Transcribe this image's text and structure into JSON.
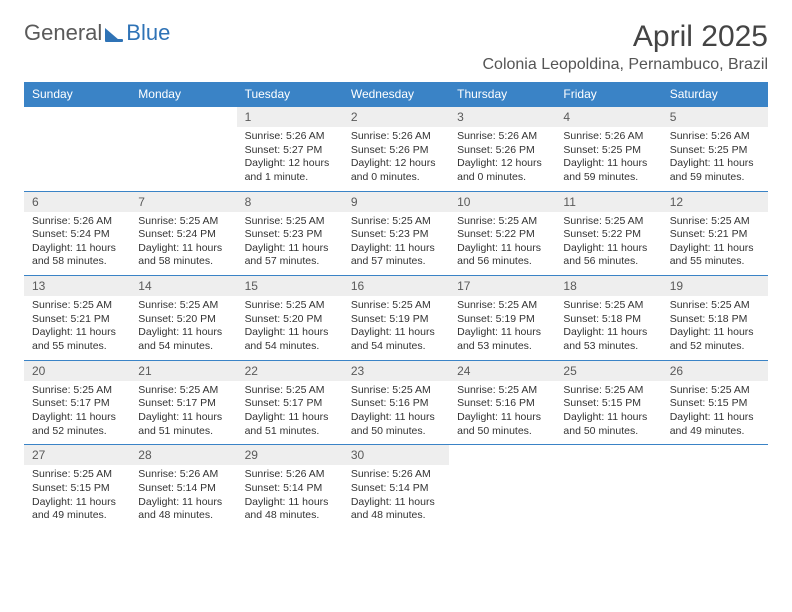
{
  "brand": {
    "part1": "General",
    "part2": "Blue"
  },
  "header": {
    "month_year": "April 2025",
    "location": "Colonia Leopoldina, Pernambuco, Brazil"
  },
  "colors": {
    "header_bg": "#3a83c6",
    "header_text": "#ffffff",
    "daynum_bg": "#eeeeee",
    "row_divider": "#3a83c6",
    "text": "#333333",
    "brand_blue": "#2f73b6",
    "page_bg": "#ffffff"
  },
  "calendar": {
    "type": "table",
    "day_headers": [
      "Sunday",
      "Monday",
      "Tuesday",
      "Wednesday",
      "Thursday",
      "Friday",
      "Saturday"
    ],
    "weeks": [
      [
        null,
        null,
        {
          "n": "1",
          "sr": "5:26 AM",
          "ss": "5:27 PM",
          "dl": "12 hours and 1 minute."
        },
        {
          "n": "2",
          "sr": "5:26 AM",
          "ss": "5:26 PM",
          "dl": "12 hours and 0 minutes."
        },
        {
          "n": "3",
          "sr": "5:26 AM",
          "ss": "5:26 PM",
          "dl": "12 hours and 0 minutes."
        },
        {
          "n": "4",
          "sr": "5:26 AM",
          "ss": "5:25 PM",
          "dl": "11 hours and 59 minutes."
        },
        {
          "n": "5",
          "sr": "5:26 AM",
          "ss": "5:25 PM",
          "dl": "11 hours and 59 minutes."
        }
      ],
      [
        {
          "n": "6",
          "sr": "5:26 AM",
          "ss": "5:24 PM",
          "dl": "11 hours and 58 minutes."
        },
        {
          "n": "7",
          "sr": "5:25 AM",
          "ss": "5:24 PM",
          "dl": "11 hours and 58 minutes."
        },
        {
          "n": "8",
          "sr": "5:25 AM",
          "ss": "5:23 PM",
          "dl": "11 hours and 57 minutes."
        },
        {
          "n": "9",
          "sr": "5:25 AM",
          "ss": "5:23 PM",
          "dl": "11 hours and 57 minutes."
        },
        {
          "n": "10",
          "sr": "5:25 AM",
          "ss": "5:22 PM",
          "dl": "11 hours and 56 minutes."
        },
        {
          "n": "11",
          "sr": "5:25 AM",
          "ss": "5:22 PM",
          "dl": "11 hours and 56 minutes."
        },
        {
          "n": "12",
          "sr": "5:25 AM",
          "ss": "5:21 PM",
          "dl": "11 hours and 55 minutes."
        }
      ],
      [
        {
          "n": "13",
          "sr": "5:25 AM",
          "ss": "5:21 PM",
          "dl": "11 hours and 55 minutes."
        },
        {
          "n": "14",
          "sr": "5:25 AM",
          "ss": "5:20 PM",
          "dl": "11 hours and 54 minutes."
        },
        {
          "n": "15",
          "sr": "5:25 AM",
          "ss": "5:20 PM",
          "dl": "11 hours and 54 minutes."
        },
        {
          "n": "16",
          "sr": "5:25 AM",
          "ss": "5:19 PM",
          "dl": "11 hours and 54 minutes."
        },
        {
          "n": "17",
          "sr": "5:25 AM",
          "ss": "5:19 PM",
          "dl": "11 hours and 53 minutes."
        },
        {
          "n": "18",
          "sr": "5:25 AM",
          "ss": "5:18 PM",
          "dl": "11 hours and 53 minutes."
        },
        {
          "n": "19",
          "sr": "5:25 AM",
          "ss": "5:18 PM",
          "dl": "11 hours and 52 minutes."
        }
      ],
      [
        {
          "n": "20",
          "sr": "5:25 AM",
          "ss": "5:17 PM",
          "dl": "11 hours and 52 minutes."
        },
        {
          "n": "21",
          "sr": "5:25 AM",
          "ss": "5:17 PM",
          "dl": "11 hours and 51 minutes."
        },
        {
          "n": "22",
          "sr": "5:25 AM",
          "ss": "5:17 PM",
          "dl": "11 hours and 51 minutes."
        },
        {
          "n": "23",
          "sr": "5:25 AM",
          "ss": "5:16 PM",
          "dl": "11 hours and 50 minutes."
        },
        {
          "n": "24",
          "sr": "5:25 AM",
          "ss": "5:16 PM",
          "dl": "11 hours and 50 minutes."
        },
        {
          "n": "25",
          "sr": "5:25 AM",
          "ss": "5:15 PM",
          "dl": "11 hours and 50 minutes."
        },
        {
          "n": "26",
          "sr": "5:25 AM",
          "ss": "5:15 PM",
          "dl": "11 hours and 49 minutes."
        }
      ],
      [
        {
          "n": "27",
          "sr": "5:25 AM",
          "ss": "5:15 PM",
          "dl": "11 hours and 49 minutes."
        },
        {
          "n": "28",
          "sr": "5:26 AM",
          "ss": "5:14 PM",
          "dl": "11 hours and 48 minutes."
        },
        {
          "n": "29",
          "sr": "5:26 AM",
          "ss": "5:14 PM",
          "dl": "11 hours and 48 minutes."
        },
        {
          "n": "30",
          "sr": "5:26 AM",
          "ss": "5:14 PM",
          "dl": "11 hours and 48 minutes."
        },
        null,
        null,
        null
      ]
    ],
    "labels": {
      "sunrise": "Sunrise: ",
      "sunset": "Sunset: ",
      "daylight": "Daylight: "
    }
  }
}
